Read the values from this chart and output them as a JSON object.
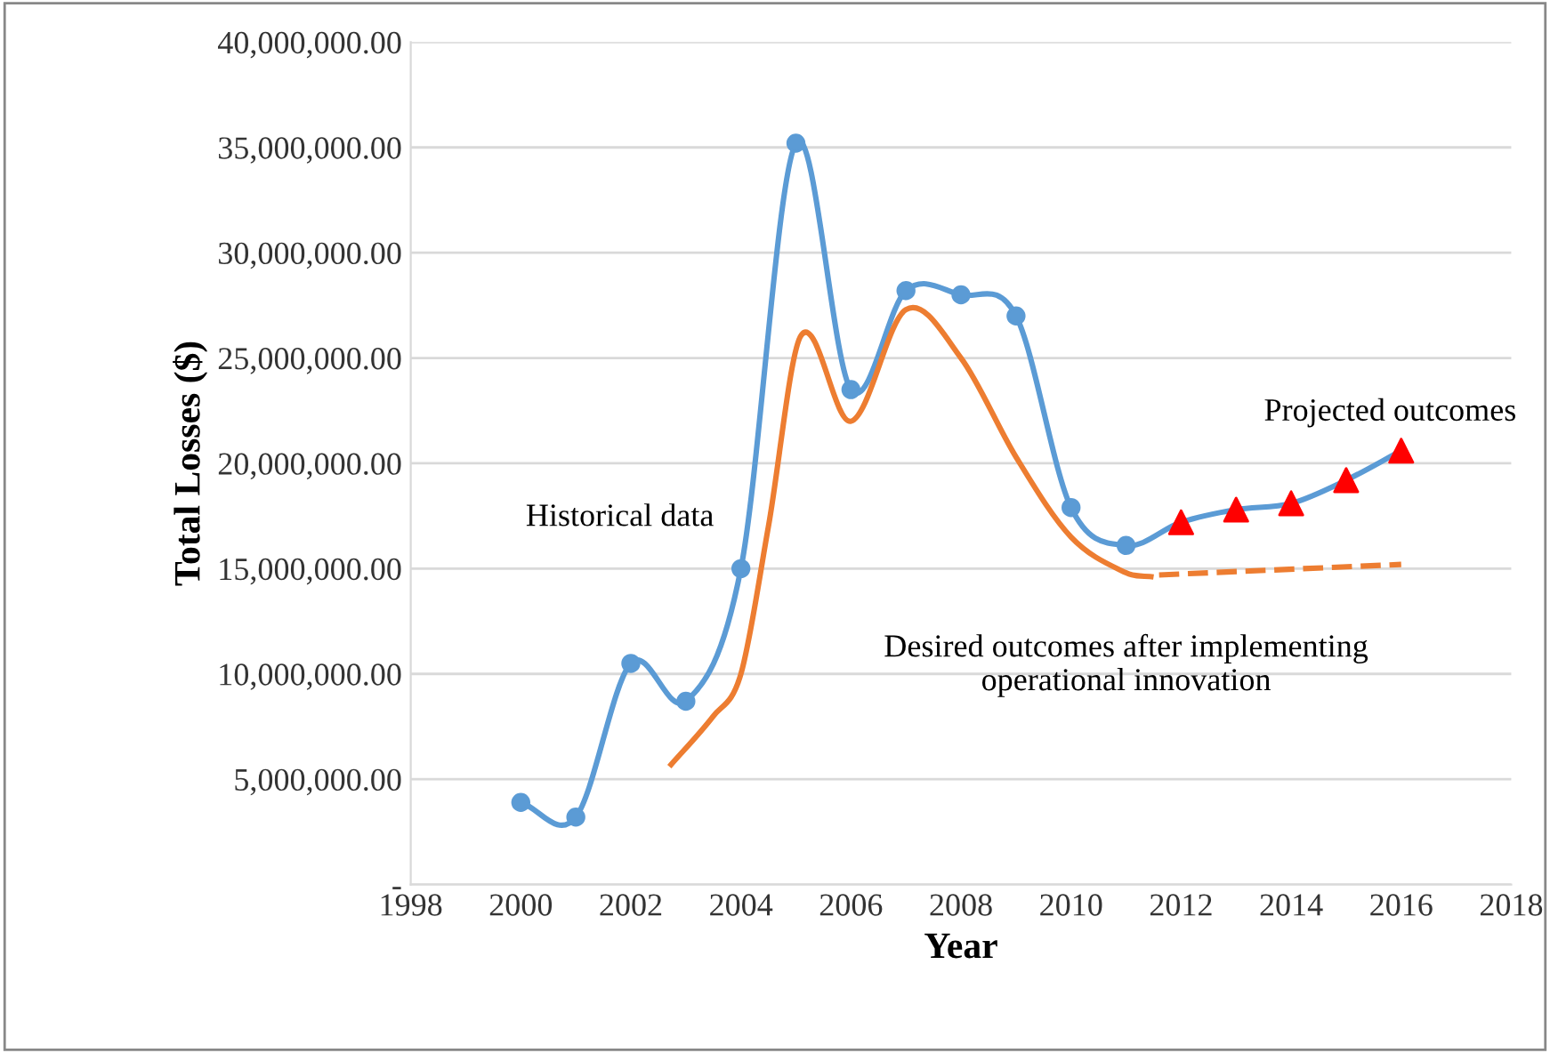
{
  "chart_data": {
    "type": "line",
    "xlabel": "Year",
    "ylabel": "Total Losses ($)",
    "xlim": [
      1998,
      2018
    ],
    "xticks": [
      1998,
      2000,
      2002,
      2004,
      2006,
      2008,
      2010,
      2012,
      2014,
      2016,
      2018
    ],
    "ylim": [
      0,
      40000000
    ],
    "yticks": [
      {
        "value": 0,
        "label": "-"
      },
      {
        "value": 5000000,
        "label": "5,000,000.00"
      },
      {
        "value": 10000000,
        "label": "10,000,000.00"
      },
      {
        "value": 15000000,
        "label": "15,000,000.00"
      },
      {
        "value": 20000000,
        "label": "20,000,000.00"
      },
      {
        "value": 25000000,
        "label": "25,000,000.00"
      },
      {
        "value": 30000000,
        "label": "30,000,000.00"
      },
      {
        "value": 35000000,
        "label": "35,000,000.00"
      },
      {
        "value": 40000000,
        "label": "40,000,000.00"
      }
    ],
    "grid": "y",
    "legend": false,
    "series": [
      {
        "color": "#5b9bd5",
        "marker": "none",
        "x": [
          2000,
          2001,
          2002,
          2003,
          2004,
          2005,
          2006,
          2007,
          2008,
          2009,
          2010,
          2011,
          2012,
          2013,
          2014,
          2015,
          2016
        ],
        "values": [
          3900000,
          3200000,
          10500000,
          8700000,
          15000000,
          35200000,
          23500000,
          28200000,
          28000000,
          27000000,
          17900000,
          16100000,
          17200000,
          17800000,
          18100000,
          19200000,
          20600000
        ]
      },
      {
        "type": "scatter",
        "color": "#5b9bd5",
        "marker": "circle",
        "x": [
          2000,
          2001,
          2002,
          2003,
          2004,
          2005,
          2006,
          2007,
          2008,
          2009,
          2010,
          2011
        ],
        "values": [
          3900000,
          3200000,
          10500000,
          8700000,
          15000000,
          35200000,
          23500000,
          28200000,
          28000000,
          27000000,
          17900000,
          16100000
        ]
      },
      {
        "type": "scatter",
        "color": "#ff0000",
        "marker": "triangle",
        "x": [
          2012,
          2013,
          2014,
          2015,
          2016
        ],
        "values": [
          17200000,
          17800000,
          18100000,
          19200000,
          20600000
        ]
      },
      {
        "type": "line",
        "color": "#ed7d31",
        "marker": "none",
        "line_style": "solid",
        "x": [
          2002.7,
          2003.5,
          2004,
          2004.5,
          2005.1,
          2006,
          2007,
          2008,
          2009,
          2010,
          2011,
          2011.5
        ],
        "values": [
          5600000,
          8000000,
          10000000,
          17000000,
          26100000,
          22000000,
          27300000,
          25000000,
          20300000,
          16500000,
          14800000,
          14600000
        ]
      },
      {
        "type": "line",
        "color": "#ed7d31",
        "marker": "none",
        "line_style": "dashed",
        "x": [
          2011.6,
          2016
        ],
        "values": [
          14700000,
          15200000
        ]
      }
    ],
    "annotations": [
      "Historical data",
      "Projected outcomes",
      "Desired outcomes after implementing\noperational innovation"
    ]
  }
}
